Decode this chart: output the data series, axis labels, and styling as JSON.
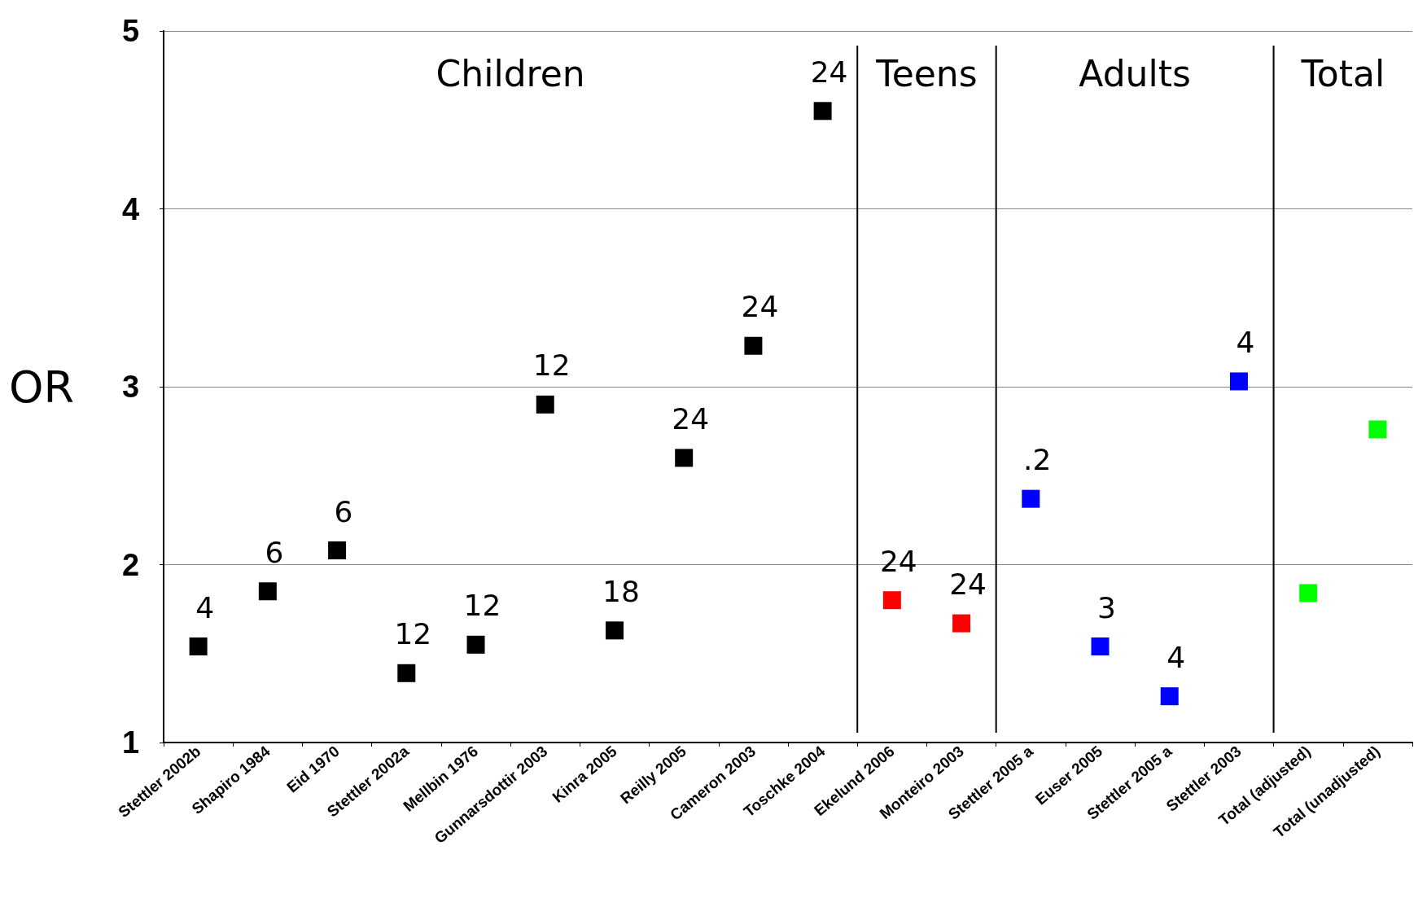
{
  "chart_data": {
    "type": "scatter",
    "ylabel": "OR",
    "categories": [
      "Stettler 2002b",
      "Shapiro 1984",
      "Eid 1970",
      "Stettler 2002a",
      "Mellbin 1976",
      "Gunnarsdottir 2003",
      "Kinra 2005",
      "Reilly 2005",
      "Cameron 2003",
      "Toschke 2004",
      "Ekelund 2006",
      "Monteiro 2003",
      "Stettler 2005 a",
      "Euser 2005",
      "Stettler 2005 a",
      "Stettler 2003",
      "Total (adjusted)",
      "Total (unadjusted)"
    ],
    "values": [
      1.54,
      1.85,
      2.08,
      1.39,
      1.55,
      2.9,
      1.63,
      2.6,
      3.23,
      4.55,
      1.8,
      1.67,
      2.37,
      1.54,
      1.26,
      3.03,
      1.84,
      2.76
    ],
    "colors": [
      "#000000",
      "#000000",
      "#000000",
      "#000000",
      "#000000",
      "#000000",
      "#000000",
      "#000000",
      "#000000",
      "#000000",
      "#ff0000",
      "#ff0000",
      "#0000ff",
      "#0000ff",
      "#0000ff",
      "#0000ff",
      "#00ff00",
      "#00ff00"
    ],
    "ylim": [
      1,
      5
    ],
    "yticks": [
      1,
      2,
      3,
      4,
      5
    ],
    "grid": "y",
    "marker": "square",
    "annotations": [
      "Children",
      "Teens",
      "Adults",
      "Total",
      {
        "text": "4",
        "x": "Stettler 2002b",
        "y": 1.54
      },
      {
        "text": "6",
        "x": "Shapiro 1984",
        "y": 1.85
      },
      {
        "text": "6",
        "x": "Eid 1970",
        "y": 2.08
      },
      {
        "text": "12",
        "x": "Stettler 2002a",
        "y": 1.39
      },
      {
        "text": "12",
        "x": "Mellbin 1976",
        "y": 1.55
      },
      {
        "text": "12",
        "x": "Gunnarsdottir 2003",
        "y": 2.9
      },
      {
        "text": "18",
        "x": "Kinra 2005",
        "y": 1.63
      },
      {
        "text": "24",
        "x": "Reilly 2005",
        "y": 2.6
      },
      {
        "text": "24",
        "x": "Cameron 2003",
        "y": 3.23
      },
      {
        "text": "24",
        "x": "Toschke 2004",
        "y": 4.55
      },
      {
        "text": "24",
        "x": "Ekelund 2006",
        "y": 1.8
      },
      {
        "text": "24",
        "x": "Monteiro 2003",
        "y": 1.67
      },
      {
        "text": ".2",
        "x": "Stettler 2005 a",
        "y": 2.37
      },
      {
        "text": "3",
        "x": "Euser 2005",
        "y": 1.54
      },
      {
        "text": "4",
        "y": 1.26
      },
      {
        "text": "4",
        "x": "Stettler 2003",
        "y": 3.03
      }
    ]
  }
}
